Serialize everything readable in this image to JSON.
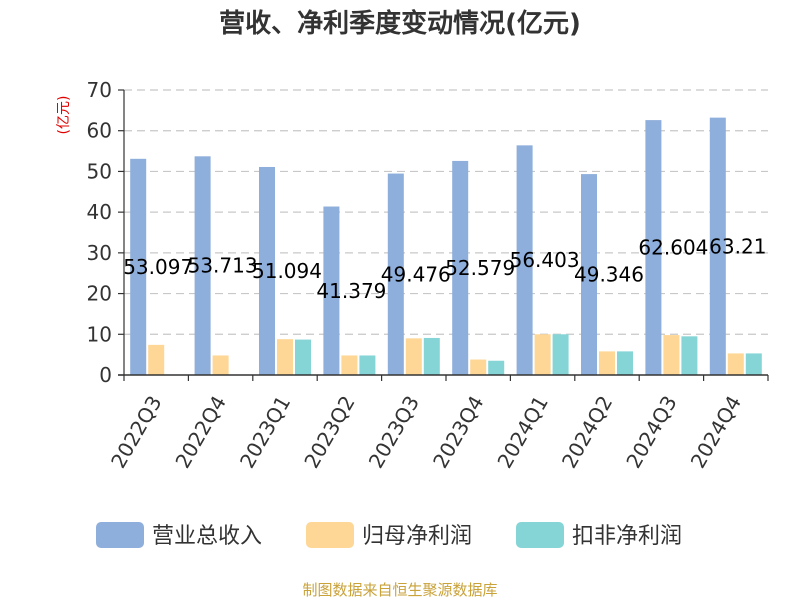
{
  "chart_data": {
    "type": "bar",
    "title": "营收、净利季度变动情况(亿元)",
    "ylabel": "(亿元)",
    "xlabel": "",
    "ylim": [
      0,
      70
    ],
    "yticks": [
      0,
      10,
      20,
      30,
      40,
      50,
      60,
      70
    ],
    "grid": true,
    "legend_position": "bottom",
    "categories": [
      "2022Q3",
      "2022Q4",
      "2023Q1",
      "2023Q2",
      "2023Q3",
      "2023Q4",
      "2024Q1",
      "2024Q2",
      "2024Q3",
      "2024Q4"
    ],
    "series": [
      {
        "name": "营业总收入",
        "color": "#8eaedb",
        "values": [
          53.097,
          53.713,
          51.094,
          41.379,
          49.476,
          52.579,
          56.403,
          49.346,
          62.604,
          63.21
        ],
        "labels": [
          "53.097",
          "53.713",
          "51.094",
          "41.379",
          "49.476",
          "52.579",
          "56.403",
          "49.346",
          "62.604",
          "63.21"
        ]
      },
      {
        "name": "归母净利润",
        "color": "#fed695",
        "values": [
          7.4,
          4.8,
          8.8,
          4.8,
          9.0,
          3.8,
          10.0,
          5.8,
          9.8,
          5.3
        ]
      },
      {
        "name": "扣非净利润",
        "color": "#86d5d6",
        "values": [
          null,
          null,
          8.7,
          4.8,
          9.1,
          3.5,
          10.0,
          5.8,
          9.5,
          5.3
        ]
      }
    ]
  },
  "source": "制图数据来自恒生聚源数据库"
}
